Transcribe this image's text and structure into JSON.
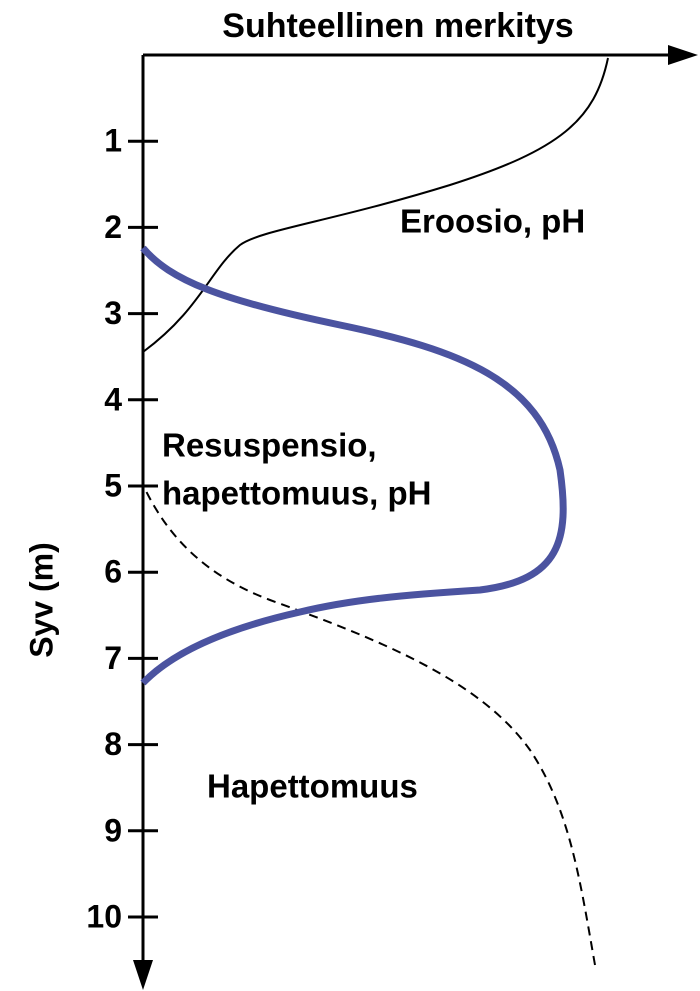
{
  "x_axis_label": "Suhteellinen merkitys",
  "y_axis_label": "Syv (m)",
  "y_ticks": [
    1,
    2,
    3,
    4,
    5,
    6,
    7,
    8,
    9,
    10
  ],
  "labels": {
    "erosion": "Eroosio, pH",
    "resuspension": [
      "Resuspensio,",
      "hapettomuus, pH"
    ],
    "anoxia": "Hapettomuus"
  }
}
